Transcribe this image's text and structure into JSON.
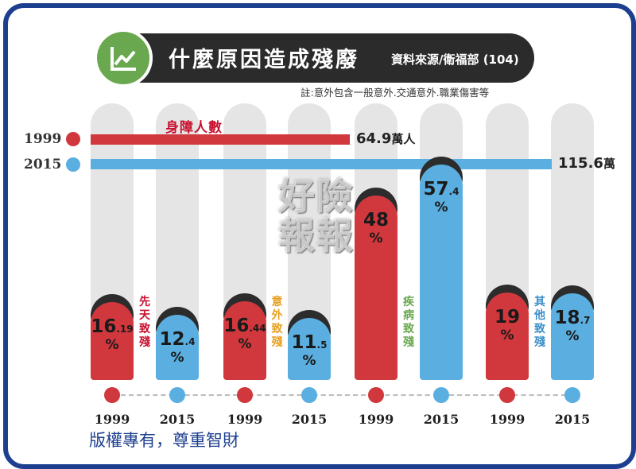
{
  "header": {
    "title": "什麼原因造成殘廢",
    "source": "資料來源/衛福部 (104)",
    "icon": "line-chart-icon",
    "note": "註:意外包含一般意外.交通意外.職業傷害等"
  },
  "legend": {
    "items": [
      {
        "label": "1999",
        "color": "#d0383d"
      },
      {
        "label": "2015",
        "color": "#5aafe0"
      }
    ]
  },
  "totals": {
    "label": "身障人數",
    "items": [
      {
        "year": "1999",
        "value": 64.9,
        "value_label": "64.9",
        "unit": "萬人"
      },
      {
        "year": "2015",
        "value": 115.6,
        "value_label": "115.6",
        "unit": "萬"
      }
    ]
  },
  "chart_data": {
    "type": "bar",
    "title": "什麼原因造成殘廢",
    "ylim": [
      0,
      100
    ],
    "categories": [
      "先天致殘",
      "意外致殘",
      "疾病致殘",
      "其他致殘"
    ],
    "x": [
      "1999",
      "2015",
      "1999",
      "2015",
      "1999",
      "2015",
      "1999",
      "2015"
    ],
    "series": [
      {
        "name": "1999",
        "color": "#d0383d",
        "values": [
          16.19,
          16.44,
          48,
          19
        ],
        "labels": [
          {
            "int": "16",
            "dec": ".19"
          },
          {
            "int": "16",
            "dec": ".44"
          },
          {
            "int": "48",
            "dec": ""
          },
          {
            "int": "19",
            "dec": ""
          }
        ]
      },
      {
        "name": "2015",
        "color": "#5aafe0",
        "values": [
          12.4,
          11.5,
          57.4,
          18.7
        ],
        "labels": [
          {
            "int": "12",
            "dec": ".4"
          },
          {
            "int": "11",
            "dec": ".5"
          },
          {
            "int": "57",
            "dec": ".4"
          },
          {
            "int": "18",
            "dec": ".7"
          }
        ]
      }
    ],
    "category_colors": [
      "#c8102e",
      "#e6a020",
      "#6aa84f",
      "#3a8fc9"
    ],
    "percent_sign": "%"
  },
  "watermark": "好險報報",
  "copyright": "版權專有，尊重智財"
}
